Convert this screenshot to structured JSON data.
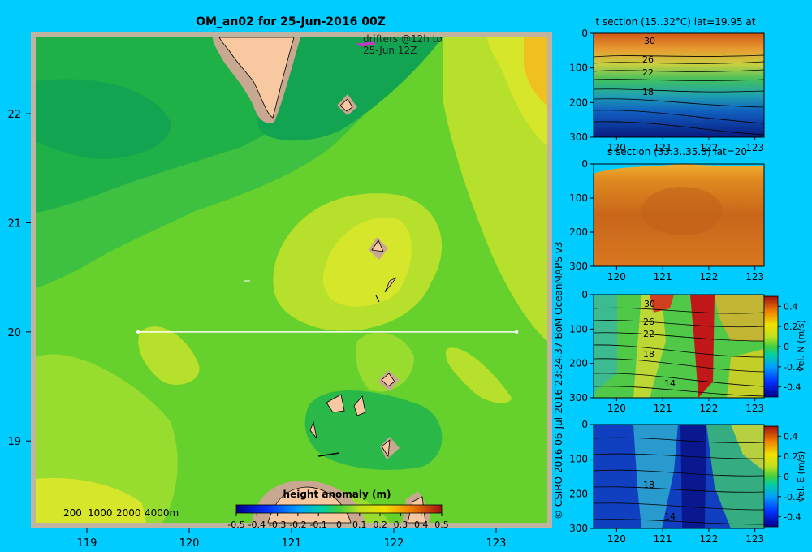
{
  "main_title": "OM_an02 for 25-Jun-2016 00Z",
  "drifters_note": [
    "drifters @12h to",
    "25-Jun 12Z"
  ],
  "depth_legend": [
    "200",
    "1000",
    "2000",
    "4000m"
  ],
  "section_line_label_lat": 20,
  "side_credit": "© CSIRO 2016   06-Jul-2016 23:24:37 BoM OceanMAPS v3",
  "colors": {
    "background": "#00ccff",
    "frame": "#c0b4a0",
    "land": "#f8c8a0",
    "shelf": "#c8a890",
    "drifter": "#cc33cc"
  },
  "chart_data": [
    {
      "type": "heatmap",
      "title": "OM_an02 for 25-Jun-2016 00Z",
      "xlim": [
        118.5,
        123.5
      ],
      "ylim": [
        18.25,
        22.7
      ],
      "xticks": [
        119,
        120,
        121,
        122,
        123
      ],
      "yticks": [
        19,
        20,
        21,
        22
      ],
      "colorbar": {
        "label": "height anomaly (m)",
        "ticks": [
          "-0.5",
          "-0.4",
          "-0.3",
          "-0.2",
          "-0.1",
          "0",
          "0.1",
          "0.2",
          "0.3",
          "0.4",
          "0.5"
        ],
        "range": [
          -0.5,
          0.5
        ]
      },
      "section_line": {
        "lat": 20.0,
        "lon_start": 119.5,
        "lon_end": 123.2
      }
    },
    {
      "type": "heatmap",
      "title": "t section (15..32°C) lat=19.95 at",
      "xlim": [
        119.5,
        123.2
      ],
      "ylim": [
        300,
        0
      ],
      "xticks": [
        120,
        121,
        122,
        123
      ],
      "yticks": [
        0,
        100,
        200,
        300
      ],
      "contour_labels": [
        "30",
        "26",
        "22",
        "18"
      ]
    },
    {
      "type": "heatmap",
      "title": "s section (33.3..35.3) lat=20",
      "xlim": [
        119.5,
        123.2
      ],
      "ylim": [
        300,
        0
      ],
      "xticks": [
        120,
        121,
        122,
        123
      ],
      "yticks": [
        0,
        100,
        200,
        300
      ]
    },
    {
      "type": "heatmap",
      "title": "",
      "xlim": [
        119.5,
        123.2
      ],
      "ylim": [
        300,
        0
      ],
      "xticks": [
        120,
        121,
        122,
        123
      ],
      "yticks": [
        0,
        100,
        200,
        300
      ],
      "contour_labels": [
        "30",
        "26",
        "22",
        "18",
        "14"
      ],
      "colorbar": {
        "label": "vel. N (m/s)",
        "ticks": [
          "0.4",
          "0.2",
          "0",
          "-0.2",
          "-0.4"
        ],
        "range": [
          -0.5,
          0.5
        ]
      }
    },
    {
      "type": "heatmap",
      "title": "",
      "xlim": [
        119.5,
        123.2
      ],
      "ylim": [
        300,
        0
      ],
      "xticks": [
        120,
        121,
        122,
        123
      ],
      "yticks": [
        0,
        100,
        200,
        300
      ],
      "contour_labels": [
        "18",
        "14"
      ],
      "colorbar": {
        "label": "vel. E (m/s)",
        "ticks": [
          "0.4",
          "0.2",
          "0",
          "-0.2",
          "-0.4"
        ],
        "range": [
          -0.5,
          0.5
        ]
      }
    }
  ]
}
